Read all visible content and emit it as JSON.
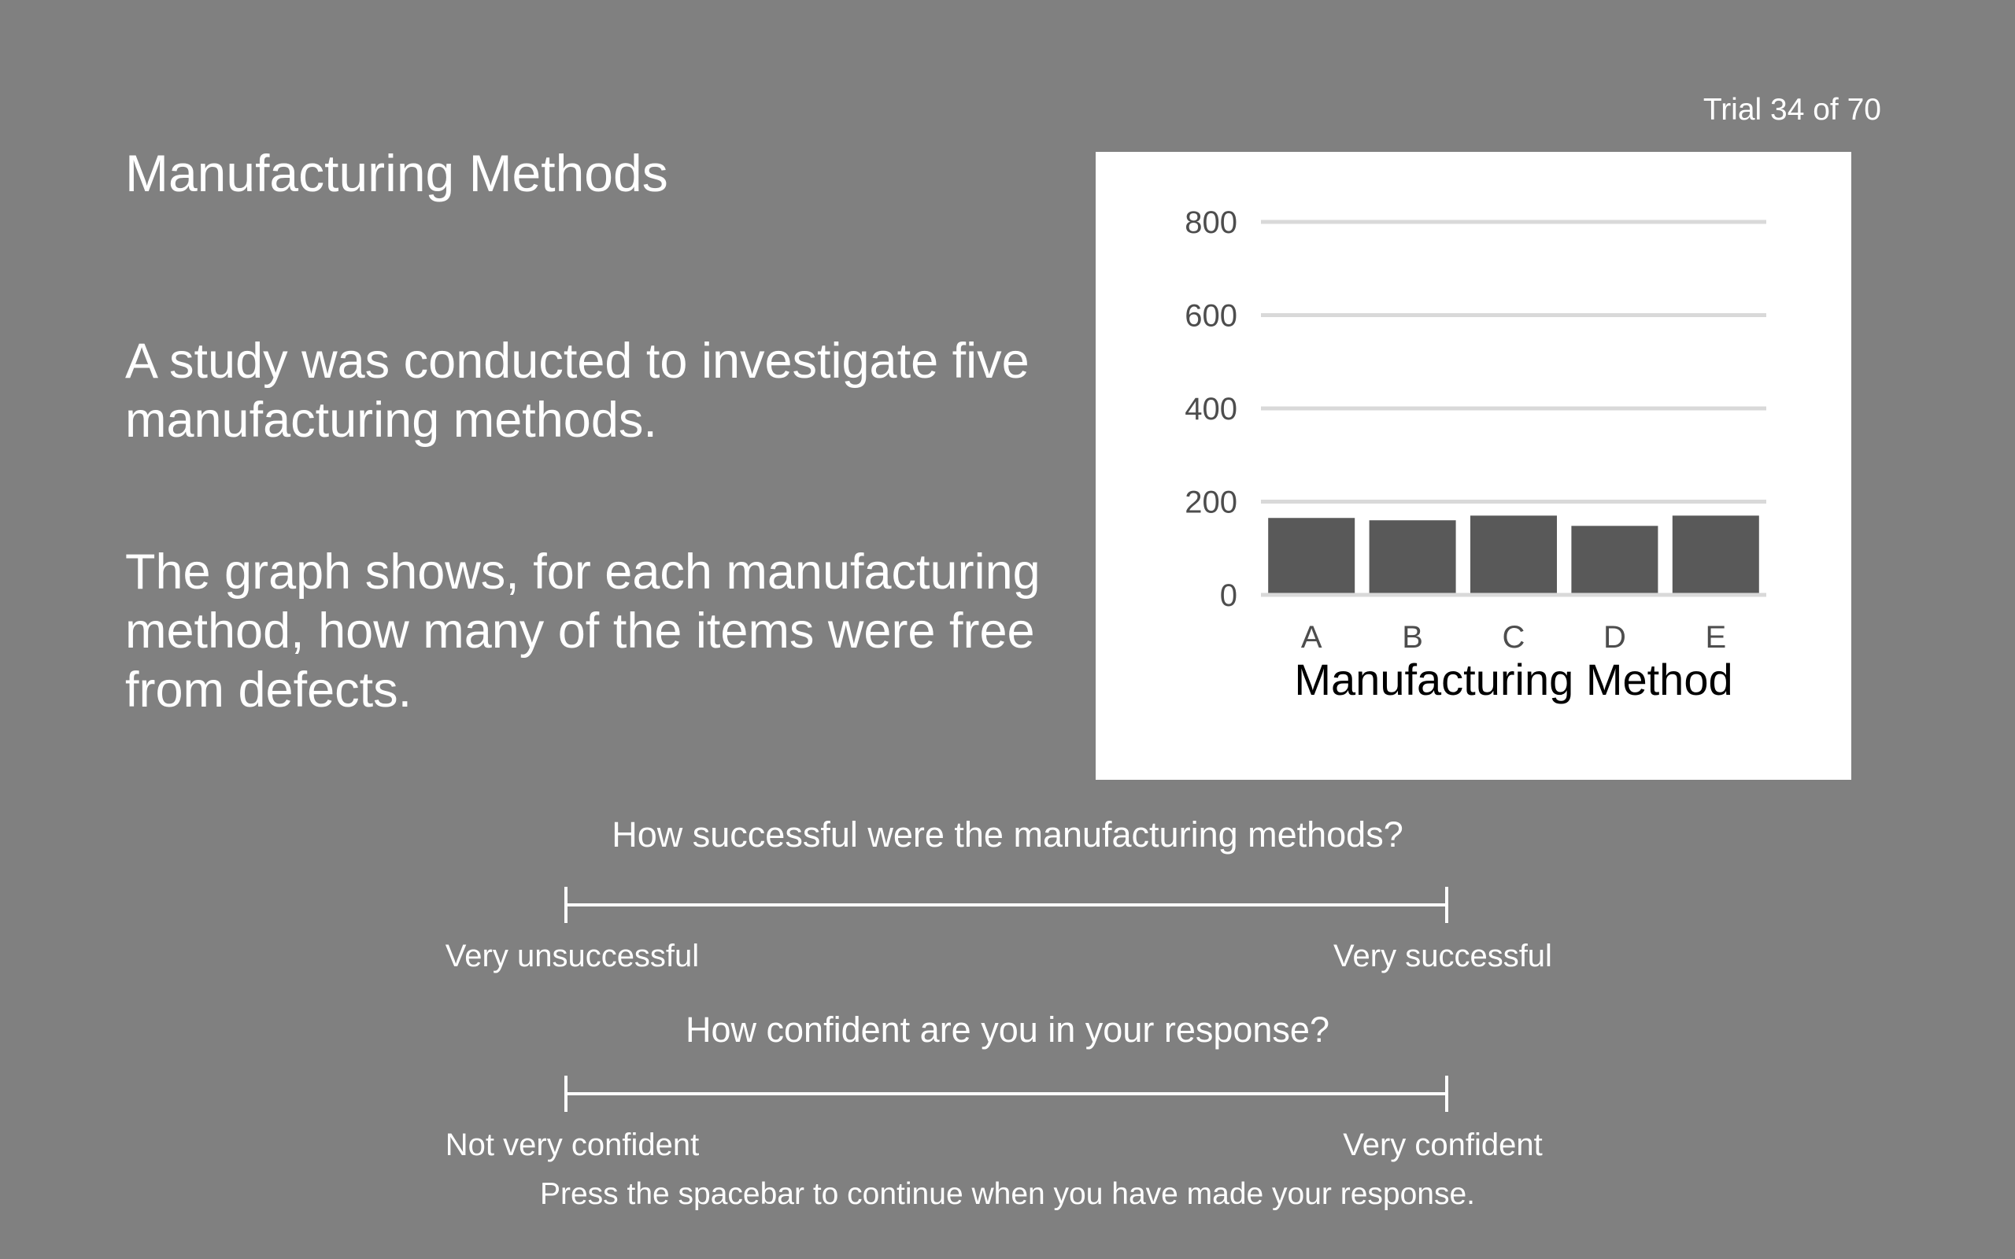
{
  "trial_counter": "Trial 34 of 70",
  "title": "Manufacturing Methods",
  "paragraph_1": "A study was conducted to investigate five manufacturing methods.",
  "paragraph_2": "The graph shows, for each manufacturing method, how many of the items were free from defects.",
  "chart_data": {
    "type": "bar",
    "title": "",
    "xlabel": "Manufacturing Method",
    "ylabel": "",
    "categories": [
      "A",
      "B",
      "C",
      "D",
      "E"
    ],
    "values": [
      165,
      160,
      170,
      148,
      170
    ],
    "yticks": [
      "0",
      "200",
      "400",
      "600",
      "800"
    ],
    "ylim": [
      0,
      800
    ],
    "grid": true,
    "legend": "none",
    "bar_color": "#595959",
    "grid_color": "#d9d9d9"
  },
  "question_1": {
    "text": "How successful were the manufacturing methods?",
    "left_anchor": "Very unsuccessful",
    "right_anchor": "Very successful"
  },
  "question_2": {
    "text": "How confident are you in your response?",
    "left_anchor": "Not very confident",
    "right_anchor": "Very confident"
  },
  "footer": "Press the spacebar to continue when you have made your response.",
  "colors": {
    "background": "#808080",
    "text": "#ffffff"
  }
}
